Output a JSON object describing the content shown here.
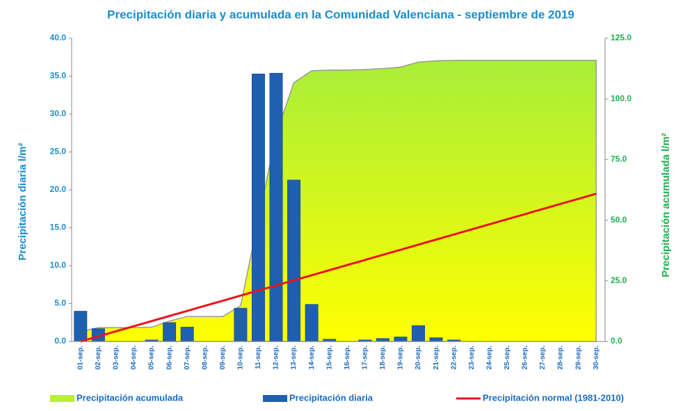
{
  "chart_data": {
    "type": "bar",
    "title": "Precipitación diaria y acumulada en la Comunidad Valenciana - septiembre de 2019",
    "ylabel": "Precipitación diaria l/m²",
    "y2label": "Precipitación acumulada l/m²",
    "categories": [
      "01-sep.",
      "02-sep.",
      "03-sep.",
      "04-sep.",
      "05-sep.",
      "06-sep.",
      "07-sep.",
      "08-sep.",
      "09-sep.",
      "10-sep.",
      "11-sep.",
      "12-sep.",
      "13-sep.",
      "14-sep.",
      "15-sep.",
      "16-sep.",
      "17-sep.",
      "18-sep.",
      "19-sep.",
      "20-sep.",
      "21-sep.",
      "22-sep.",
      "23-sep.",
      "24-sep.",
      "25-sep.",
      "26-sep.",
      "27-sep.",
      "28-sep.",
      "29-sep.",
      "30-sep."
    ],
    "series": [
      {
        "name": "Precipitación acumulada",
        "type": "area",
        "axis": "y2",
        "color": "#b8f22e",
        "values": [
          4.0,
          5.7,
          5.7,
          5.7,
          5.9,
          8.4,
          10.3,
          10.3,
          10.3,
          14.7,
          50.0,
          85.4,
          106.7,
          111.6,
          111.9,
          111.9,
          112.1,
          112.5,
          113.1,
          115.2,
          115.7,
          115.9,
          115.9,
          115.9,
          115.9,
          115.9,
          115.9,
          115.9,
          115.9,
          115.9
        ]
      },
      {
        "name": "Precipitación diaria",
        "type": "bar",
        "color": "#1f5fb0",
        "values": [
          4.0,
          1.7,
          0,
          0,
          0.2,
          2.5,
          1.9,
          0,
          0,
          4.4,
          35.3,
          35.4,
          21.3,
          4.9,
          0.3,
          0,
          0.2,
          0.4,
          0.6,
          2.1,
          0.5,
          0.2,
          0,
          0,
          0,
          0,
          0,
          0,
          0,
          0
        ]
      },
      {
        "name": "Precipitación normal (1981-2010)",
        "type": "line",
        "axis": "y2",
        "color": "#e8141b",
        "values": [
          0,
          2.1,
          4.2,
          6.3,
          8.4,
          10.5,
          12.6,
          14.7,
          16.8,
          18.9,
          21.0,
          23.1,
          25.2,
          27.3,
          29.4,
          31.5,
          33.6,
          35.7,
          37.8,
          39.9,
          42.0,
          44.1,
          46.2,
          48.3,
          50.4,
          52.5,
          54.6,
          56.7,
          58.8,
          60.9
        ]
      }
    ],
    "ylim": [
      0,
      40
    ],
    "yticks": [
      {
        "value": 0,
        "label": "0.0"
      },
      {
        "value": 5,
        "label": "5.0"
      },
      {
        "value": 10,
        "label": "10.0"
      },
      {
        "value": 15,
        "label": "15.0"
      },
      {
        "value": 20,
        "label": "20.0"
      },
      {
        "value": 25,
        "label": "25.0"
      },
      {
        "value": 30,
        "label": "30.0"
      },
      {
        "value": 35,
        "label": "35.0"
      },
      {
        "value": 40,
        "label": "40.0"
      }
    ],
    "y2lim": [
      0,
      125
    ],
    "y2ticks": [
      {
        "value": 0,
        "label": "0.0"
      },
      {
        "value": 25,
        "label": "25.0"
      },
      {
        "value": 50,
        "label": "50.0"
      },
      {
        "value": 75,
        "label": "75.0"
      },
      {
        "value": 100,
        "label": "100.0"
      },
      {
        "value": 125,
        "label": "125.0"
      }
    ],
    "legend": "bottom"
  }
}
